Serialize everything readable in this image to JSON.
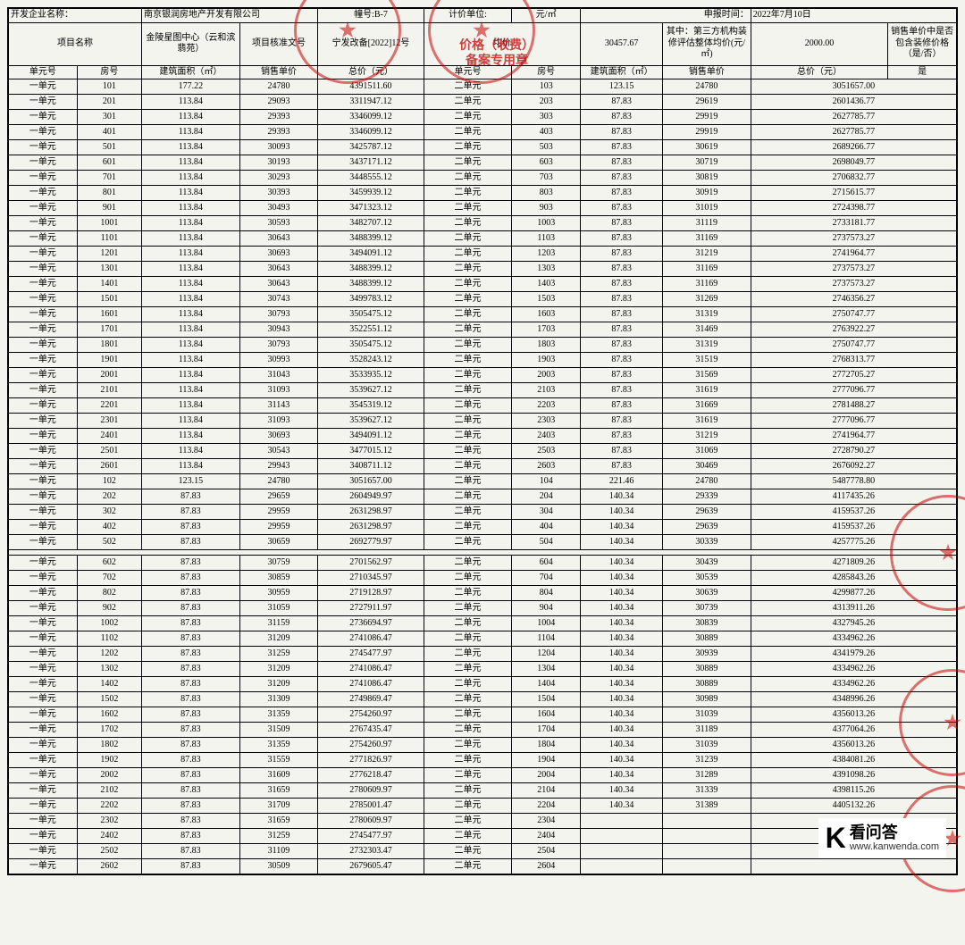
{
  "top": {
    "company_label": "开发企业名称：",
    "company": "南京银润房地产开发有限公司",
    "building_label": "幢号:B-7",
    "unit_measure_label": "计价单位:",
    "unit_measure": "元/㎡",
    "report_label": "申报时间：",
    "report_date": "2022年7月10日"
  },
  "hdr": {
    "project_name": "项目名称",
    "project_value": "金陵星图中心（云和滨翡苑）",
    "approval_label": "项目核准文号",
    "approval_value": "宁发改备[2022]12号",
    "avg_price_label": "均价",
    "avg_price_value": "30457.67",
    "third_party_label": "其中：第三方机构装修评估整体均价(元/㎡)",
    "third_party_value": "2000.00",
    "include_deco_label": "销售单价中是否包含装修价格（是/否）",
    "include_deco_value": "是"
  },
  "cols": {
    "unit_no": "单元号",
    "room_no": "房号",
    "area": "建筑面积（㎡）",
    "unit_price": "销售单价",
    "total_price": "总价（元）",
    "unit_no2": "单元号",
    "room_no2": "房号",
    "area2": "建筑面积（㎡）",
    "unit_price2": "销售单价",
    "total_price2": "总价（元）"
  },
  "stamp_label": "价格（收费）\n备案专用章",
  "rows": [
    [
      "一单元",
      "101",
      "177.22",
      "24780",
      "4391511.60",
      "二单元",
      "103",
      "123.15",
      "24780",
      "3051657.00"
    ],
    [
      "一单元",
      "201",
      "113.84",
      "29093",
      "3311947.12",
      "二单元",
      "203",
      "87.83",
      "29619",
      "2601436.77"
    ],
    [
      "一单元",
      "301",
      "113.84",
      "29393",
      "3346099.12",
      "二单元",
      "303",
      "87.83",
      "29919",
      "2627785.77"
    ],
    [
      "一单元",
      "401",
      "113.84",
      "29393",
      "3346099.12",
      "二单元",
      "403",
      "87.83",
      "29919",
      "2627785.77"
    ],
    [
      "一单元",
      "501",
      "113.84",
      "30093",
      "3425787.12",
      "二单元",
      "503",
      "87.83",
      "30619",
      "2689266.77"
    ],
    [
      "一单元",
      "601",
      "113.84",
      "30193",
      "3437171.12",
      "二单元",
      "603",
      "87.83",
      "30719",
      "2698049.77"
    ],
    [
      "一单元",
      "701",
      "113.84",
      "30293",
      "3448555.12",
      "二单元",
      "703",
      "87.83",
      "30819",
      "2706832.77"
    ],
    [
      "一单元",
      "801",
      "113.84",
      "30393",
      "3459939.12",
      "二单元",
      "803",
      "87.83",
      "30919",
      "2715615.77"
    ],
    [
      "一单元",
      "901",
      "113.84",
      "30493",
      "3471323.12",
      "二单元",
      "903",
      "87.83",
      "31019",
      "2724398.77"
    ],
    [
      "一单元",
      "1001",
      "113.84",
      "30593",
      "3482707.12",
      "二单元",
      "1003",
      "87.83",
      "31119",
      "2733181.77"
    ],
    [
      "一单元",
      "1101",
      "113.84",
      "30643",
      "3488399.12",
      "二单元",
      "1103",
      "87.83",
      "31169",
      "2737573.27"
    ],
    [
      "一单元",
      "1201",
      "113.84",
      "30693",
      "3494091.12",
      "二单元",
      "1203",
      "87.83",
      "31219",
      "2741964.77"
    ],
    [
      "一单元",
      "1301",
      "113.84",
      "30643",
      "3488399.12",
      "二单元",
      "1303",
      "87.83",
      "31169",
      "2737573.27"
    ],
    [
      "一单元",
      "1401",
      "113.84",
      "30643",
      "3488399.12",
      "二单元",
      "1403",
      "87.83",
      "31169",
      "2737573.27"
    ],
    [
      "一单元",
      "1501",
      "113.84",
      "30743",
      "3499783.12",
      "二单元",
      "1503",
      "87.83",
      "31269",
      "2746356.27"
    ],
    [
      "一单元",
      "1601",
      "113.84",
      "30793",
      "3505475.12",
      "二单元",
      "1603",
      "87.83",
      "31319",
      "2750747.77"
    ],
    [
      "一单元",
      "1701",
      "113.84",
      "30943",
      "3522551.12",
      "二单元",
      "1703",
      "87.83",
      "31469",
      "2763922.27"
    ],
    [
      "一单元",
      "1801",
      "113.84",
      "30793",
      "3505475.12",
      "二单元",
      "1803",
      "87.83",
      "31319",
      "2750747.77"
    ],
    [
      "一单元",
      "1901",
      "113.84",
      "30993",
      "3528243.12",
      "二单元",
      "1903",
      "87.83",
      "31519",
      "2768313.77"
    ],
    [
      "一单元",
      "2001",
      "113.84",
      "31043",
      "3533935.12",
      "二单元",
      "2003",
      "87.83",
      "31569",
      "2772705.27"
    ],
    [
      "一单元",
      "2101",
      "113.84",
      "31093",
      "3539627.12",
      "二单元",
      "2103",
      "87.83",
      "31619",
      "2777096.77"
    ],
    [
      "一单元",
      "2201",
      "113.84",
      "31143",
      "3545319.12",
      "二单元",
      "2203",
      "87.83",
      "31669",
      "2781488.27"
    ],
    [
      "一单元",
      "2301",
      "113.84",
      "31093",
      "3539627.12",
      "二单元",
      "2303",
      "87.83",
      "31619",
      "2777096.77"
    ],
    [
      "一单元",
      "2401",
      "113.84",
      "30693",
      "3494091.12",
      "二单元",
      "2403",
      "87.83",
      "31219",
      "2741964.77"
    ],
    [
      "一单元",
      "2501",
      "113.84",
      "30543",
      "3477015.12",
      "二单元",
      "2503",
      "87.83",
      "31069",
      "2728790.27"
    ],
    [
      "一单元",
      "2601",
      "113.84",
      "29943",
      "3408711.12",
      "二单元",
      "2603",
      "87.83",
      "30469",
      "2676092.27"
    ],
    [
      "一单元",
      "102",
      "123.15",
      "24780",
      "3051657.00",
      "二单元",
      "104",
      "221.46",
      "24780",
      "5487778.80"
    ],
    [
      "一单元",
      "202",
      "87.83",
      "29659",
      "2604949.97",
      "二单元",
      "204",
      "140.34",
      "29339",
      "4117435.26"
    ],
    [
      "一单元",
      "302",
      "87.83",
      "29959",
      "2631298.97",
      "二单元",
      "304",
      "140.34",
      "29639",
      "4159537.26"
    ],
    [
      "一单元",
      "402",
      "87.83",
      "29959",
      "2631298.97",
      "二单元",
      "404",
      "140.34",
      "29639",
      "4159537.26"
    ],
    [
      "一单元",
      "502",
      "87.83",
      "30659",
      "2692779.97",
      "二单元",
      "504",
      "140.34",
      "30339",
      "4257775.26"
    ]
  ],
  "rows2": [
    [
      "一单元",
      "602",
      "87.83",
      "30759",
      "2701562.97",
      "二单元",
      "604",
      "140.34",
      "30439",
      "4271809.26"
    ],
    [
      "一单元",
      "702",
      "87.83",
      "30859",
      "2710345.97",
      "二单元",
      "704",
      "140.34",
      "30539",
      "4285843.26"
    ],
    [
      "一单元",
      "802",
      "87.83",
      "30959",
      "2719128.97",
      "二单元",
      "804",
      "140.34",
      "30639",
      "4299877.26"
    ],
    [
      "一单元",
      "902",
      "87.83",
      "31059",
      "2727911.97",
      "二单元",
      "904",
      "140.34",
      "30739",
      "4313911.26"
    ],
    [
      "一单元",
      "1002",
      "87.83",
      "31159",
      "2736694.97",
      "二单元",
      "1004",
      "140.34",
      "30839",
      "4327945.26"
    ],
    [
      "一单元",
      "1102",
      "87.83",
      "31209",
      "2741086.47",
      "二单元",
      "1104",
      "140.34",
      "30889",
      "4334962.26"
    ],
    [
      "一单元",
      "1202",
      "87.83",
      "31259",
      "2745477.97",
      "二单元",
      "1204",
      "140.34",
      "30939",
      "4341979.26"
    ],
    [
      "一单元",
      "1302",
      "87.83",
      "31209",
      "2741086.47",
      "二单元",
      "1304",
      "140.34",
      "30889",
      "4334962.26"
    ],
    [
      "一单元",
      "1402",
      "87.83",
      "31209",
      "2741086.47",
      "二单元",
      "1404",
      "140.34",
      "30889",
      "4334962.26"
    ],
    [
      "一单元",
      "1502",
      "87.83",
      "31309",
      "2749869.47",
      "二单元",
      "1504",
      "140.34",
      "30989",
      "4348996.26"
    ],
    [
      "一单元",
      "1602",
      "87.83",
      "31359",
      "2754260.97",
      "二单元",
      "1604",
      "140.34",
      "31039",
      "4356013.26"
    ],
    [
      "一单元",
      "1702",
      "87.83",
      "31509",
      "2767435.47",
      "二单元",
      "1704",
      "140.34",
      "31189",
      "4377064.26"
    ],
    [
      "一单元",
      "1802",
      "87.83",
      "31359",
      "2754260.97",
      "二单元",
      "1804",
      "140.34",
      "31039",
      "4356013.26"
    ],
    [
      "一单元",
      "1902",
      "87.83",
      "31559",
      "2771826.97",
      "二单元",
      "1904",
      "140.34",
      "31239",
      "4384081.26"
    ],
    [
      "一单元",
      "2002",
      "87.83",
      "31609",
      "2776218.47",
      "二单元",
      "2004",
      "140.34",
      "31289",
      "4391098.26"
    ],
    [
      "一单元",
      "2102",
      "87.83",
      "31659",
      "2780609.97",
      "二单元",
      "2104",
      "140.34",
      "31339",
      "4398115.26"
    ],
    [
      "一单元",
      "2202",
      "87.83",
      "31709",
      "2785001.47",
      "二单元",
      "2204",
      "140.34",
      "31389",
      "4405132.26"
    ],
    [
      "一单元",
      "2302",
      "87.83",
      "31659",
      "2780609.97",
      "二单元",
      "2304",
      "",
      "",
      ""
    ],
    [
      "一单元",
      "2402",
      "87.83",
      "31259",
      "2745477.97",
      "二单元",
      "2404",
      "",
      "",
      ""
    ],
    [
      "一单元",
      "2502",
      "87.83",
      "31109",
      "2732303.47",
      "二单元",
      "2504",
      "",
      "",
      ""
    ],
    [
      "一单元",
      "2602",
      "87.83",
      "30509",
      "2679605.47",
      "二单元",
      "2604",
      "",
      "",
      ""
    ]
  ],
  "watermark": {
    "cn": "看问答",
    "url": "www.kanwenda.com"
  }
}
